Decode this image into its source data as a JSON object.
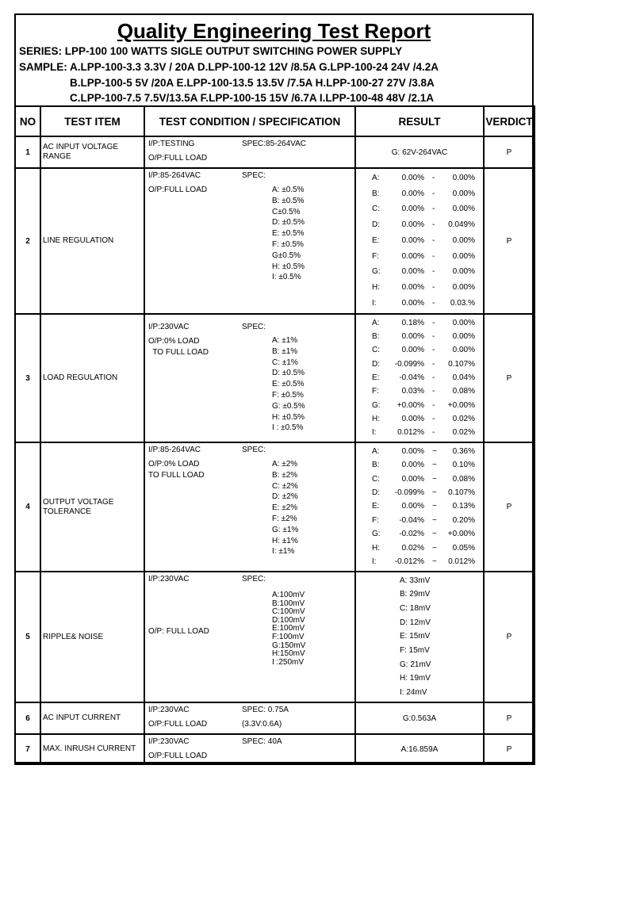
{
  "title": "Quality Engineering Test Report",
  "series": "SERIES: LPP-100 100 WATTS SIGLE OUTPUT SWITCHING POWER SUPPLY",
  "sample": [
    "SAMPLE: A.LPP-100-3.3 3.3V / 20A D.LPP-100-12 12V /8.5A G.LPP-100-24 24V /4.2A",
    "B.LPP-100-5 5V /20A E.LPP-100-13.5 13.5V /7.5A H.LPP-100-27 27V /3.8A",
    "C.LPP-100-7.5 7.5V/13.5A F.LPP-100-15 15V /6.7A I.LPP-100-48 48V /2.1A"
  ],
  "headers": [
    "NO",
    "TEST ITEM",
    "TEST CONDITION / SPECIFICATION",
    "RESULT",
    "VERDICT"
  ],
  "rows": [
    {
      "no": "1",
      "item": "AC INPUT VOLTAGE RANGE",
      "cond": [
        "I/P:TESTING",
        "O/P:FULL LOAD"
      ],
      "spec": "SPEC:85-264VAC",
      "spec_extra": "",
      "spec_items": [],
      "result": "G: 62V-264VAC",
      "results": [],
      "verdict": "P"
    },
    {
      "no": "2",
      "item": "LINE REGULATION",
      "cond": [
        "I/P:85-264VAC",
        "O/P:FULL LOAD"
      ],
      "spec": "SPEC:",
      "spec_extra": "",
      "spec_items": [
        "A: ±0.5%",
        "B: ±0.5%",
        "C±0.5%",
        "D: ±0.5%",
        "E: ±0.5%",
        "F: ±0.5%",
        "G±0.5%",
        "H: ±0.5%",
        "I: ±0.5%"
      ],
      "result": "",
      "results": [
        [
          "A:",
          "0.00%",
          "-",
          "0.00%"
        ],
        [
          "B:",
          "0.00%",
          "-",
          "0.00%"
        ],
        [
          "C:",
          "0.00%",
          "-",
          "0.00%"
        ],
        [
          "D:",
          "0.00%",
          "-",
          "0.049%"
        ],
        [
          "E:",
          "0.00%",
          "-",
          "0.00%"
        ],
        [
          "F:",
          "0.00%",
          "-",
          "0.00%"
        ],
        [
          "G:",
          "0.00%",
          "-",
          "0.00%"
        ],
        [
          "H:",
          "0.00%",
          "-",
          "0.00%"
        ],
        [
          "I:",
          "0.00%",
          "-",
          "0.03.%"
        ]
      ],
      "verdict": "P"
    },
    {
      "no": "3",
      "item": "LOAD REGULATION",
      "cond": [
        "I/P:230VAC",
        "O/P:0% LOAD",
        "  TO FULL LOAD"
      ],
      "spec": "SPEC:",
      "spec_extra": "",
      "spec_items": [
        "A: ±1%",
        "B: ±1%",
        "C: ±1%",
        "D: ±0.5%",
        "E: ±0.5%",
        "F: ±0.5%",
        "G: ±0.5%",
        "H: ±0.5%",
        "I : ±0.5%"
      ],
      "result": "",
      "results": [
        [
          "A:",
          "0.18%",
          "-",
          "0.00%"
        ],
        [
          "B:",
          "0.00%",
          "-",
          "0.00%"
        ],
        [
          "C:",
          "0.00%",
          "-",
          "0.00%"
        ],
        [
          "D:",
          "-0.099%",
          "-",
          "0.107%"
        ],
        [
          "E:",
          "-0.04%",
          "-",
          "0.04%"
        ],
        [
          "F:",
          "0.03%",
          "-",
          "0.08%"
        ],
        [
          "G:",
          "+0.00%",
          "-",
          "+0.00%"
        ],
        [
          "H:",
          "0.00%",
          "-",
          "0.02%"
        ],
        [
          "I:",
          "0.012%",
          "-",
          "0.02%"
        ]
      ],
      "verdict": "P"
    },
    {
      "no": "4",
      "item": "OUTPUT VOLTAGE TOLERANCE",
      "cond": [
        "I/P:85-264VAC",
        "O/P:0% LOAD",
        "TO FULL LOAD"
      ],
      "spec": "SPEC:",
      "spec_extra": "",
      "spec_items": [
        "A: ±2%",
        "B: ±2%",
        "C: ±2%",
        "D: ±2%",
        "E: ±2%",
        "F: ±2%",
        "G: ±1%",
        "H: ±1%",
        "I:  ±1%"
      ],
      "result": "",
      "results": [
        [
          "A:",
          "0.00%",
          "~",
          "0.36%"
        ],
        [
          "B:",
          "0.00%",
          "~",
          "0.10%"
        ],
        [
          "C:",
          "0.00%",
          "~",
          "0.08%"
        ],
        [
          "D:",
          "-0.099%",
          "~",
          "0.107%"
        ],
        [
          "E:",
          "0.00%",
          "~",
          "0.13%"
        ],
        [
          "F:",
          "-0.04%",
          "~",
          "0.20%"
        ],
        [
          "G:",
          "-0.02%",
          "~",
          "+0.00%"
        ],
        [
          "H:",
          "0.02%",
          "~",
          "0.05%"
        ],
        [
          "I:",
          "-0.012%",
          "~",
          "0.012%"
        ]
      ],
      "verdict": "P"
    },
    {
      "no": "5",
      "item": "RIPPLE& NOISE",
      "cond": [
        "I/P:230VAC",
        "O/P: FULL LOAD"
      ],
      "spec": "SPEC:",
      "spec_extra": "",
      "spec_items": [
        "A:100mV",
        "B:100mV",
        "C:100mV",
        "D:100mV",
        "E:100mV",
        "F:100mV",
        "G:150mV",
        "H:150mV",
        "I :250mV"
      ],
      "result": "",
      "results": [
        [
          "A: 33mV"
        ],
        [
          "B: 29mV"
        ],
        [
          "C: 18mV"
        ],
        [
          "D: 12mV"
        ],
        [
          "E: 15mV"
        ],
        [
          "F: 15mV"
        ],
        [
          "G: 21mV"
        ],
        [
          "H: 19mV"
        ],
        [
          "I: 24mV"
        ]
      ],
      "verdict": "P"
    },
    {
      "no": "6",
      "item": "AC INPUT CURRENT",
      "cond": [
        "I/P:230VAC",
        "O/P:FULL LOAD"
      ],
      "spec": "SPEC: 0.75A",
      "spec_extra": "(3.3V:0.6A)",
      "spec_items": [],
      "result": "G:0.563A",
      "results": [],
      "verdict": "P"
    },
    {
      "no": "7",
      "item": "MAX. INRUSH CURRENT",
      "cond": [
        "I/P:230VAC",
        "O/P:FULL LOAD"
      ],
      "spec": "SPEC: 40A",
      "spec_extra": "",
      "spec_items": [],
      "result": "A:16.859A",
      "results": [],
      "verdict": "P"
    }
  ]
}
